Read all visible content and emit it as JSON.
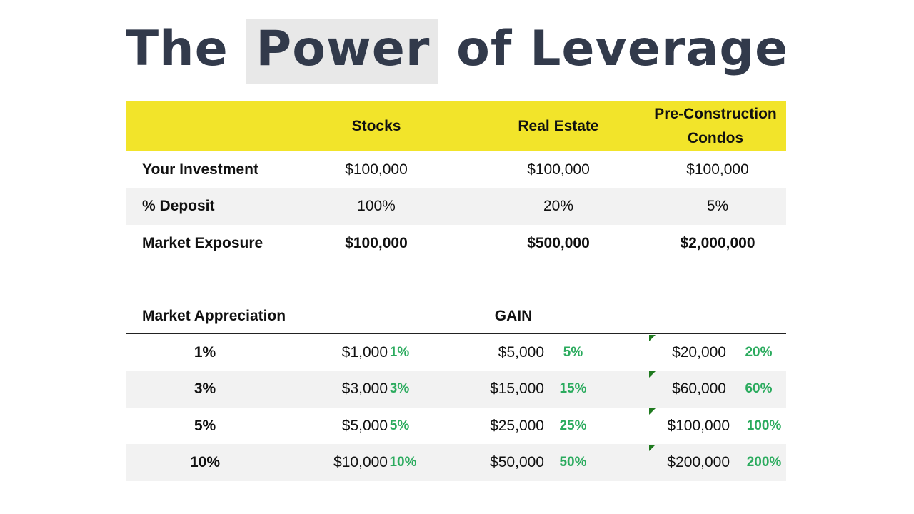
{
  "title": {
    "part1": "The",
    "highlight": "Power",
    "part2": "of Leverage"
  },
  "exposure_table": {
    "headers": [
      "",
      "Stocks",
      "Real Estate",
      "Pre-Construction\nCondos"
    ],
    "header_line1": "Pre-Construction",
    "header_line2": "Condos",
    "rows": [
      {
        "label": "Your Investment",
        "values": [
          "$100,000",
          "$100,000",
          "$100,000"
        ]
      },
      {
        "label": "% Deposit",
        "values": [
          "100%",
          "20%",
          "5%"
        ]
      },
      {
        "label": "Market Exposure",
        "values": [
          "$100,000",
          "$500,000",
          "$2,000,000"
        ]
      }
    ]
  },
  "gain_table": {
    "label_header": "Market Appreciation",
    "gain_header": "GAIN",
    "rows": [
      {
        "appreciation": "1%",
        "stocks": [
          "$1,000",
          "1%"
        ],
        "real_estate": [
          "$5,000",
          "5%"
        ],
        "condos": [
          "$20,000",
          "20%"
        ]
      },
      {
        "appreciation": "3%",
        "stocks": [
          "$3,000",
          "3%"
        ],
        "real_estate": [
          "$15,000",
          "15%"
        ],
        "condos": [
          "$60,000",
          "60%"
        ]
      },
      {
        "appreciation": "5%",
        "stocks": [
          "$5,000",
          "5%"
        ],
        "real_estate": [
          "$25,000",
          "25%"
        ],
        "condos": [
          "$100,000",
          "100%"
        ]
      },
      {
        "appreciation": "10%",
        "stocks": [
          "$10,000",
          "10%"
        ],
        "real_estate": [
          "$50,000",
          "50%"
        ],
        "condos": [
          "$200,000",
          "200%"
        ]
      }
    ]
  },
  "colors": {
    "title": "#323a4b",
    "header_band": "#f2e42a",
    "gain_percent": "#2bab5e",
    "row_stripe": "#f2f2f2",
    "corner_marker": "#1f7a1f"
  }
}
